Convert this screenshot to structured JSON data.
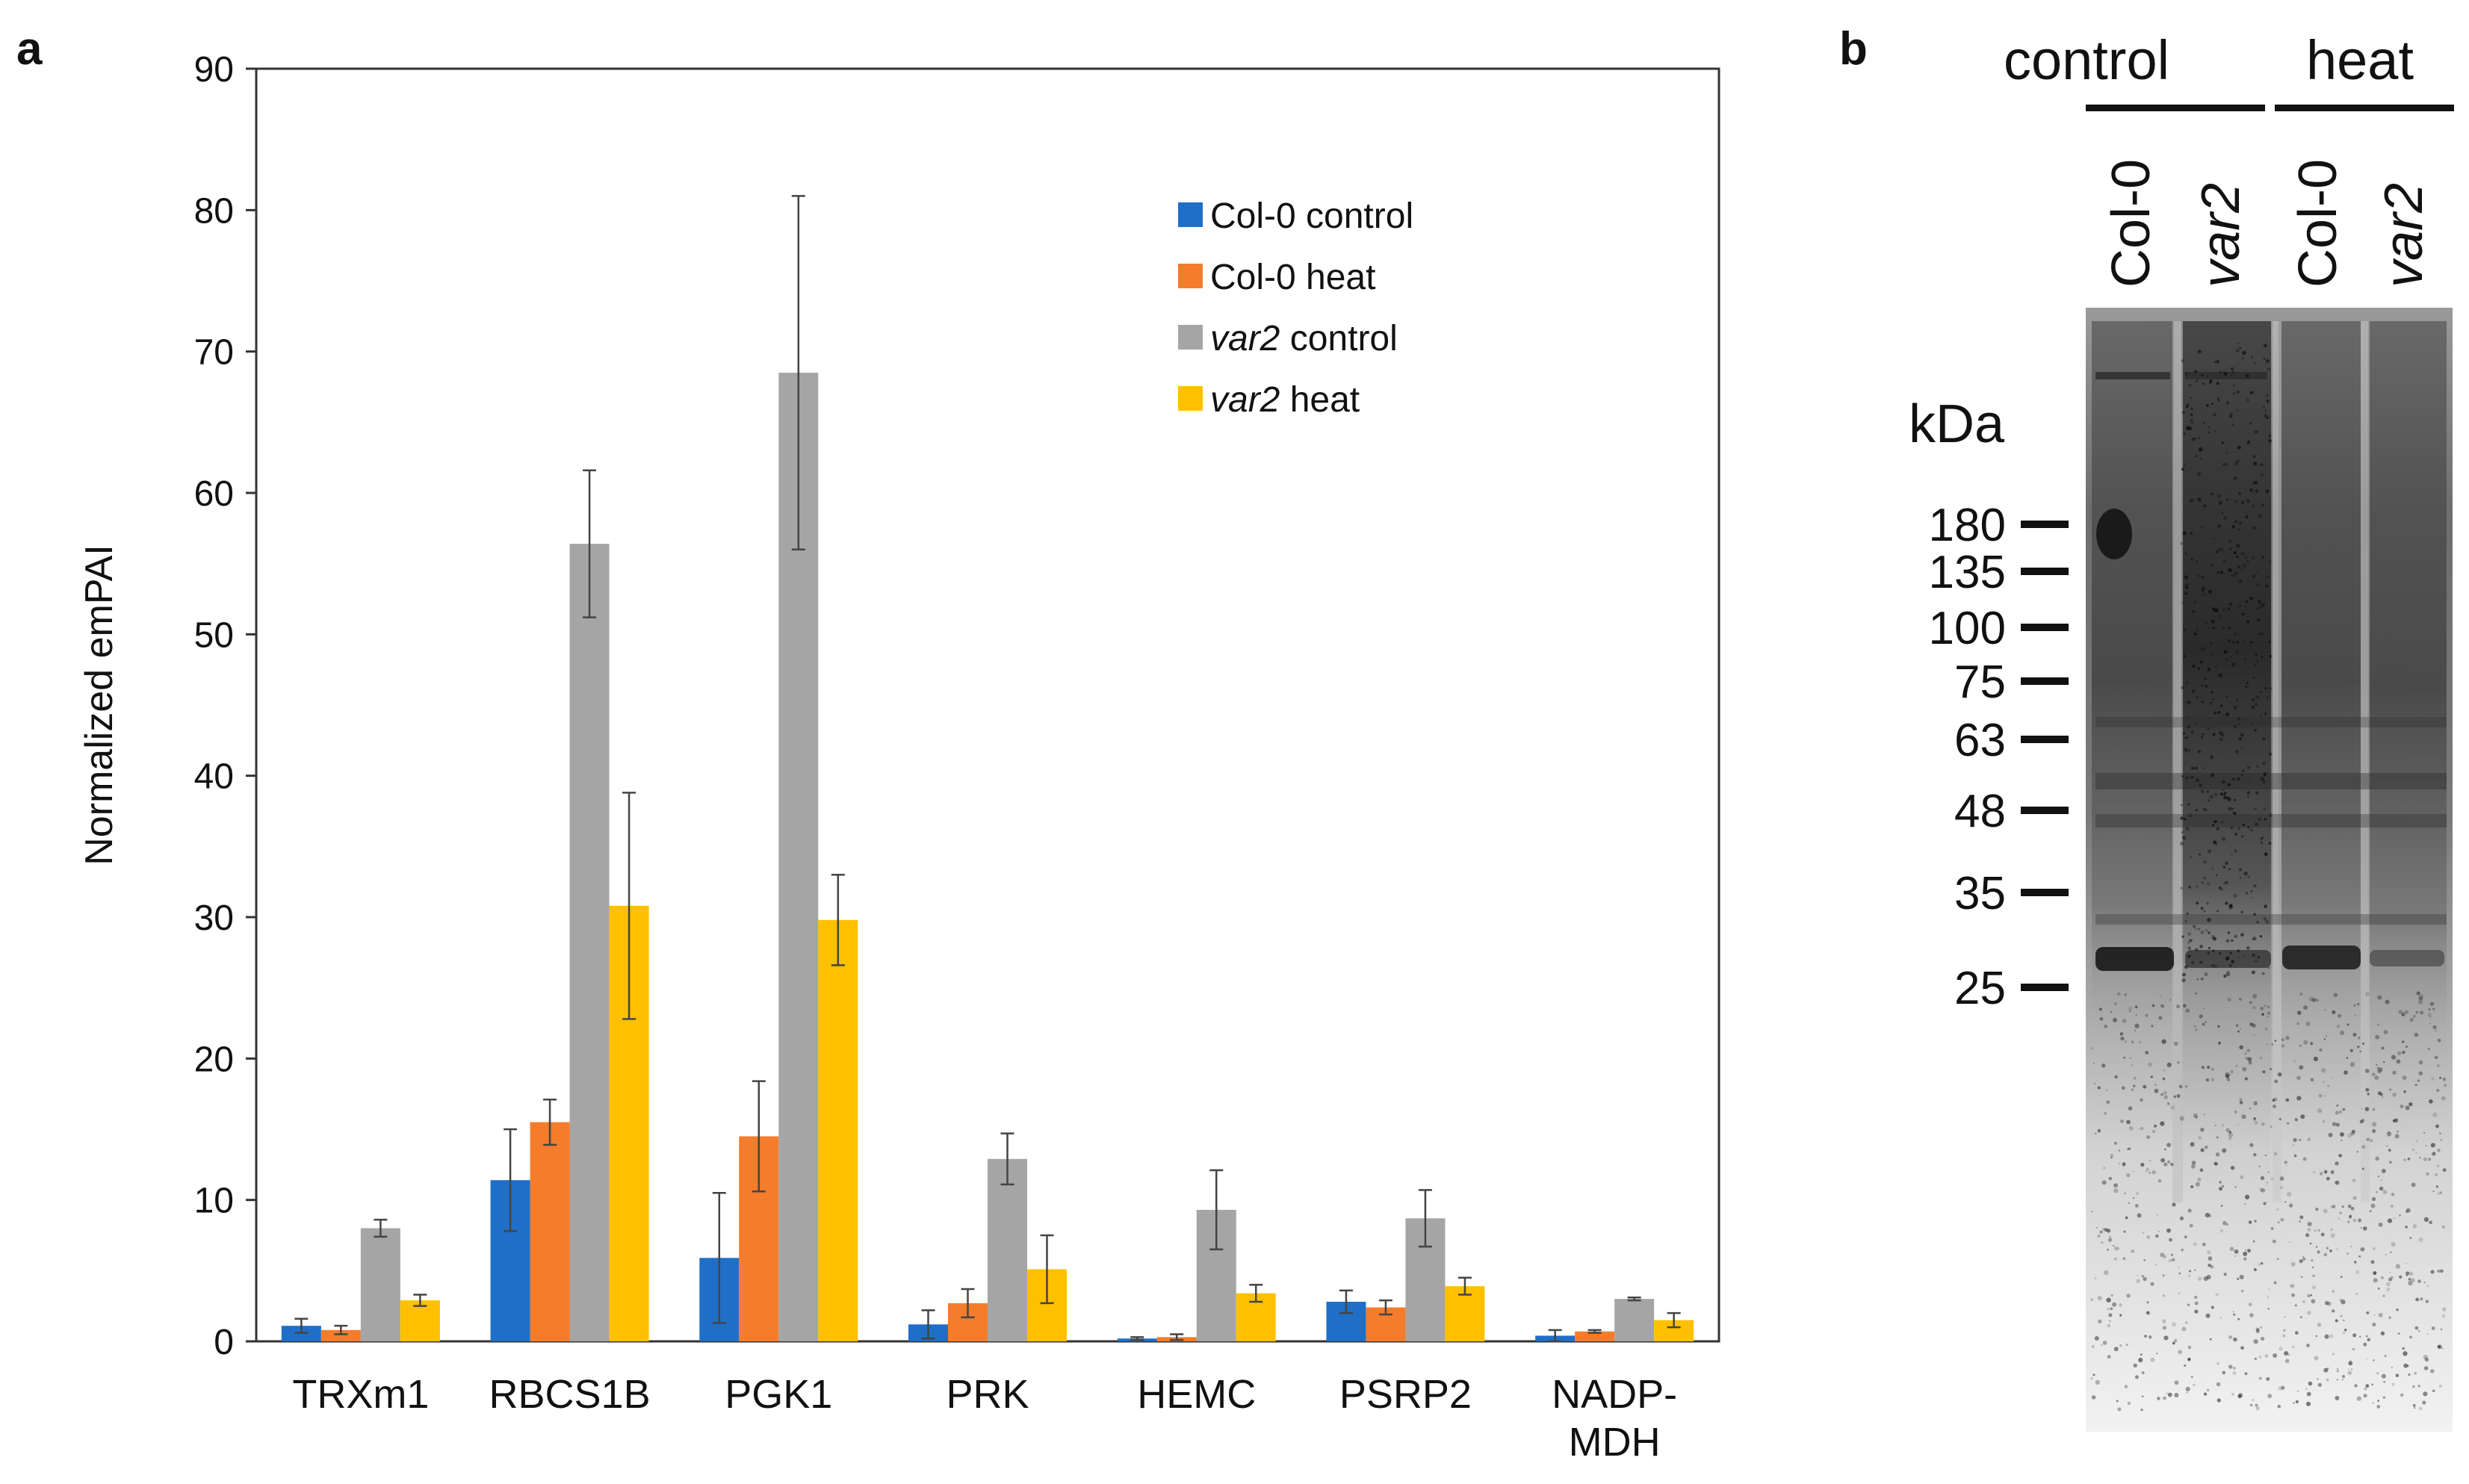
{
  "panels": {
    "a": "a",
    "b": "b"
  },
  "chart_data": {
    "type": "bar",
    "title": "",
    "xlabel": "",
    "ylabel": "Normalized emPAI",
    "ylim": [
      0,
      90
    ],
    "yticks": [
      0,
      10,
      20,
      30,
      40,
      50,
      60,
      70,
      80,
      90
    ],
    "grid": false,
    "legend_position": "top-right",
    "categories": [
      {
        "lines": [
          "TRXm1"
        ]
      },
      {
        "lines": [
          "RBCS1B"
        ]
      },
      {
        "lines": [
          "PGK1"
        ]
      },
      {
        "lines": [
          "PRK"
        ]
      },
      {
        "lines": [
          "HEMC"
        ]
      },
      {
        "lines": [
          "PSRP2"
        ]
      },
      {
        "lines": [
          "NADP-",
          "MDH"
        ]
      }
    ],
    "series": [
      {
        "name": "Col-0 control",
        "name_italic": "",
        "name_rest": "Col-0 control",
        "color": "#1f6fc8",
        "values": [
          1.1,
          11.4,
          5.9,
          1.2,
          0.2,
          2.8,
          0.4
        ],
        "errors": [
          0.5,
          3.6,
          4.6,
          1.0,
          0.1,
          0.8,
          0.4
        ]
      },
      {
        "name": "Col-0 heat",
        "name_italic": "",
        "name_rest": "Col-0 heat",
        "color": "#f57c2b",
        "values": [
          0.8,
          15.5,
          14.5,
          2.7,
          0.3,
          2.4,
          0.7
        ],
        "errors": [
          0.3,
          1.6,
          3.9,
          1.0,
          0.2,
          0.5,
          0.1
        ]
      },
      {
        "name": "var2 control",
        "name_italic": "var2",
        "name_rest": " control",
        "color": "#a5a5a5",
        "values": [
          8.0,
          56.4,
          68.5,
          12.9,
          9.3,
          8.7,
          3.0
        ],
        "errors": [
          0.6,
          5.2,
          12.5,
          1.8,
          2.8,
          2.0,
          0.1
        ]
      },
      {
        "name": "var2 heat",
        "name_italic": "var2",
        "name_rest": " heat",
        "color": "#ffc000",
        "values": [
          2.9,
          30.8,
          29.8,
          5.1,
          3.4,
          3.9,
          1.5
        ],
        "errors": [
          0.4,
          8.0,
          3.2,
          2.4,
          0.6,
          0.6,
          0.5
        ]
      }
    ]
  },
  "gel": {
    "conditions": [
      "control",
      "heat"
    ],
    "lanes": [
      {
        "label": "Col-0",
        "italic": false
      },
      {
        "label": "var2",
        "italic": true
      },
      {
        "label": "Col-0",
        "italic": false
      },
      {
        "label": "var2",
        "italic": true
      }
    ],
    "unit_label": "kDa",
    "markers": [
      "180",
      "135",
      "100",
      "75",
      "63",
      "48",
      "35",
      "25"
    ]
  }
}
